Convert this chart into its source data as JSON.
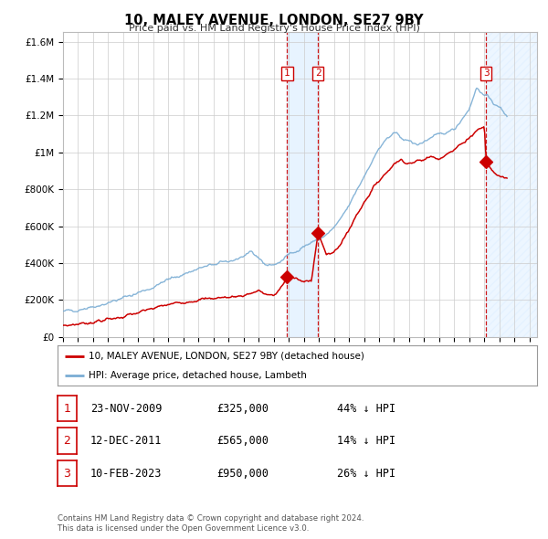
{
  "title": "10, MALEY AVENUE, LONDON, SE27 9BY",
  "subtitle": "Price paid vs. HM Land Registry's House Price Index (HPI)",
  "legend_line1": "10, MALEY AVENUE, LONDON, SE27 9BY (detached house)",
  "legend_line2": "HPI: Average price, detached house, Lambeth",
  "footer_line1": "Contains HM Land Registry data © Crown copyright and database right 2024.",
  "footer_line2": "This data is licensed under the Open Government Licence v3.0.",
  "sales": [
    {
      "num": 1,
      "date": "23-NOV-2009",
      "price": 325000,
      "pct": "44%",
      "direction": "↓",
      "x_year": 2009.9
    },
    {
      "num": 2,
      "date": "12-DEC-2011",
      "price": 565000,
      "pct": "14%",
      "direction": "↓",
      "x_year": 2011.95
    },
    {
      "num": 3,
      "date": "10-FEB-2023",
      "price": 950000,
      "pct": "26%",
      "direction": "↓",
      "x_year": 2023.12
    }
  ],
  "hpi_color": "#7aadd4",
  "price_color": "#cc0000",
  "shade_color": "#ddeeff",
  "vline_color": "#cc0000",
  "hatch_color": "#c8d8e8",
  "ylim": [
    0,
    1650000
  ],
  "xlim_start": 1995.0,
  "xlim_end": 2026.5,
  "yticks": [
    0,
    200000,
    400000,
    600000,
    800000,
    1000000,
    1200000,
    1400000,
    1600000
  ],
  "ytick_labels": [
    "£0",
    "£200K",
    "£400K",
    "£600K",
    "£800K",
    "£1M",
    "£1.2M",
    "£1.4M",
    "£1.6M"
  ],
  "xticks": [
    1995,
    1996,
    1997,
    1998,
    1999,
    2000,
    2001,
    2002,
    2003,
    2004,
    2005,
    2006,
    2007,
    2008,
    2009,
    2010,
    2011,
    2012,
    2013,
    2014,
    2015,
    2016,
    2017,
    2018,
    2019,
    2020,
    2021,
    2022,
    2023,
    2024,
    2025,
    2026
  ],
  "hpi_anchors_x": [
    1995.0,
    1996.0,
    1997.0,
    1998.0,
    1999.0,
    2000.0,
    2001.0,
    2002.0,
    2003.0,
    2004.0,
    2005.0,
    2006.0,
    2007.0,
    2007.5,
    2008.0,
    2008.5,
    2009.0,
    2009.5,
    2010.0,
    2010.5,
    2011.0,
    2011.5,
    2012.0,
    2012.5,
    2013.0,
    2013.5,
    2014.0,
    2014.5,
    2015.0,
    2015.5,
    2016.0,
    2016.5,
    2017.0,
    2017.5,
    2018.0,
    2018.5,
    2019.0,
    2019.5,
    2020.0,
    2020.5,
    2021.0,
    2021.5,
    2022.0,
    2022.5,
    2023.0,
    2023.5,
    2024.0,
    2024.5
  ],
  "hpi_anchors_y": [
    135000,
    150000,
    165000,
    185000,
    210000,
    240000,
    270000,
    310000,
    340000,
    370000,
    390000,
    410000,
    435000,
    450000,
    430000,
    390000,
    390000,
    410000,
    445000,
    470000,
    490000,
    510000,
    530000,
    550000,
    590000,
    640000,
    710000,
    790000,
    870000,
    950000,
    1020000,
    1070000,
    1100000,
    1080000,
    1060000,
    1040000,
    1060000,
    1080000,
    1090000,
    1110000,
    1130000,
    1180000,
    1240000,
    1350000,
    1310000,
    1280000,
    1240000,
    1200000
  ],
  "price_anchors_x": [
    1995.0,
    1996.0,
    1997.0,
    1998.0,
    1999.0,
    2000.0,
    2001.0,
    2002.0,
    2003.0,
    2004.0,
    2005.0,
    2006.0,
    2007.0,
    2008.0,
    2008.5,
    2009.0,
    2009.5,
    2009.9,
    2010.2,
    2010.5,
    2011.0,
    2011.5,
    2011.95,
    2012.2,
    2012.5,
    2013.0,
    2013.5,
    2014.0,
    2014.5,
    2015.0,
    2015.5,
    2016.0,
    2016.5,
    2017.0,
    2017.5,
    2018.0,
    2018.5,
    2019.0,
    2019.5,
    2020.0,
    2020.5,
    2021.0,
    2021.5,
    2022.0,
    2022.5,
    2023.0,
    2023.12,
    2023.5,
    2024.0,
    2024.5
  ],
  "price_anchors_y": [
    60000,
    70000,
    80000,
    95000,
    110000,
    130000,
    155000,
    175000,
    190000,
    200000,
    210000,
    215000,
    225000,
    250000,
    230000,
    220000,
    270000,
    325000,
    320000,
    315000,
    295000,
    310000,
    565000,
    510000,
    440000,
    460000,
    510000,
    580000,
    660000,
    730000,
    790000,
    850000,
    890000,
    940000,
    960000,
    940000,
    950000,
    960000,
    980000,
    970000,
    990000,
    1010000,
    1050000,
    1080000,
    1120000,
    1140000,
    950000,
    900000,
    870000,
    860000
  ]
}
